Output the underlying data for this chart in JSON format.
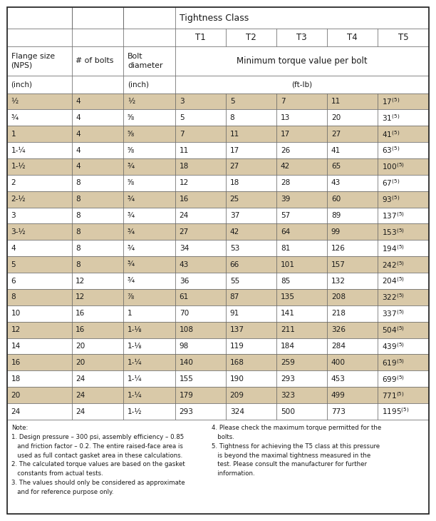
{
  "col_headers": [
    "T1",
    "T2",
    "T3",
    "T4",
    "T5"
  ],
  "rows": [
    [
      "½",
      "4",
      "½",
      "3",
      "5",
      "7",
      "11",
      "17",
      "(5)"
    ],
    [
      "¾",
      "4",
      "⁵⁄₈",
      "5",
      "8",
      "13",
      "20",
      "31",
      "(5)"
    ],
    [
      "1",
      "4",
      "⁵⁄₈",
      "7",
      "11",
      "17",
      "27",
      "41",
      "(5)"
    ],
    [
      "1-¼",
      "4",
      "⁵⁄₈",
      "11",
      "17",
      "26",
      "41",
      "63",
      "(5)"
    ],
    [
      "1-½",
      "4",
      "¾",
      "18",
      "27",
      "42",
      "65",
      "100",
      "(5)"
    ],
    [
      "2",
      "8",
      "⁵⁄₈",
      "12",
      "18",
      "28",
      "43",
      "67",
      "(5)"
    ],
    [
      "2-½",
      "8",
      "¾",
      "16",
      "25",
      "39",
      "60",
      "93",
      "(5)"
    ],
    [
      "3",
      "8",
      "¾",
      "24",
      "37",
      "57",
      "89",
      "137",
      "(5)"
    ],
    [
      "3-½",
      "8",
      "¾",
      "27",
      "42",
      "64",
      "99",
      "153",
      "(5)"
    ],
    [
      "4",
      "8",
      "¾",
      "34",
      "53",
      "81",
      "126",
      "194",
      "(5)"
    ],
    [
      "5",
      "8",
      "¾",
      "43",
      "66",
      "101",
      "157",
      "242",
      "(5)"
    ],
    [
      "6",
      "12",
      "¾",
      "36",
      "55",
      "85",
      "132",
      "204",
      "(5)"
    ],
    [
      "8",
      "12",
      "⁷⁄₈",
      "61",
      "87",
      "135",
      "208",
      "322",
      "(5)"
    ],
    [
      "10",
      "16",
      "1",
      "70",
      "91",
      "141",
      "218",
      "337",
      "(5)"
    ],
    [
      "12",
      "16",
      "1-⅛",
      "108",
      "137",
      "211",
      "326",
      "504",
      "(5)"
    ],
    [
      "14",
      "20",
      "1-⅛",
      "98",
      "119",
      "184",
      "284",
      "439",
      "(5)"
    ],
    [
      "16",
      "20",
      "1-¼",
      "140",
      "168",
      "259",
      "400",
      "619",
      "(5)"
    ],
    [
      "18",
      "24",
      "1-¼",
      "155",
      "190",
      "293",
      "453",
      "699",
      "(5)"
    ],
    [
      "20",
      "24",
      "1-¼",
      "179",
      "209",
      "323",
      "499",
      "771",
      "(5)"
    ],
    [
      "24",
      "24",
      "1-½",
      "293",
      "324",
      "500",
      "773",
      "1195",
      "(5)"
    ]
  ],
  "bg_shaded": "#D9C9A8",
  "bg_white": "#FFFFFF",
  "border_color": "#555555",
  "text_color": "#1a1a1a",
  "note_left_lines": [
    "Note:",
    "1. Design pressure – 300 psi, assembly efficiency – 0.85",
    "   and friction factor – 0.2. The entire raised-face area is",
    "   used as full contact gasket area in these calculations.",
    "2. The calculated torque values are based on the gasket",
    "   constants from actual tests.",
    "3. The values should only be considered as approximate",
    "   and for reference purpose only."
  ],
  "note_right_lines": [
    "4. Please check the maximum torque permitted for the",
    "   bolts.",
    "5. Tightness for achieving the T5 class at this pressure",
    "   is beyond the maximal tightness measured in the",
    "   test. Please consult the manufacturer for further",
    "   information."
  ]
}
